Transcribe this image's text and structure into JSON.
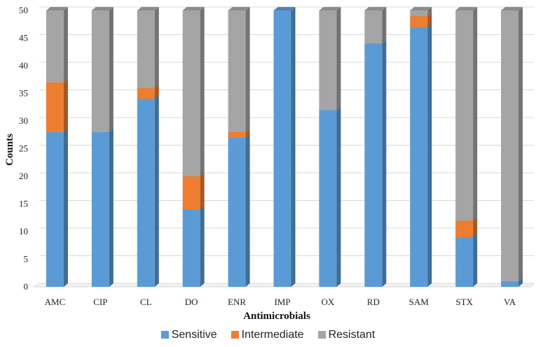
{
  "chart_data": {
    "type": "bar",
    "stacked": true,
    "title": "",
    "xlabel": "Antimicrobials",
    "ylabel": "Counts",
    "ylim": [
      0,
      50
    ],
    "yticks": [
      0,
      5,
      10,
      15,
      20,
      25,
      30,
      35,
      40,
      45,
      50
    ],
    "categories": [
      "AMC",
      "CIP",
      "CL",
      "DO",
      "ENR",
      "IMP",
      "OX",
      "RD",
      "SAM",
      "STX",
      "VA"
    ],
    "series": [
      {
        "name": "Sensitive",
        "color": "#5b9bd5",
        "values": [
          28,
          28,
          34,
          14,
          27,
          50,
          32,
          44,
          47,
          9,
          1
        ]
      },
      {
        "name": "Intermediate",
        "color": "#ed7d31",
        "values": [
          9,
          0,
          2,
          6,
          1,
          0,
          0,
          0,
          2,
          3,
          0
        ]
      },
      {
        "name": "Resistant",
        "color": "#a5a5a5",
        "values": [
          13,
          22,
          14,
          30,
          22,
          0,
          18,
          6,
          1,
          38,
          49
        ]
      }
    ],
    "legend_position": "bottom",
    "grid": true
  }
}
